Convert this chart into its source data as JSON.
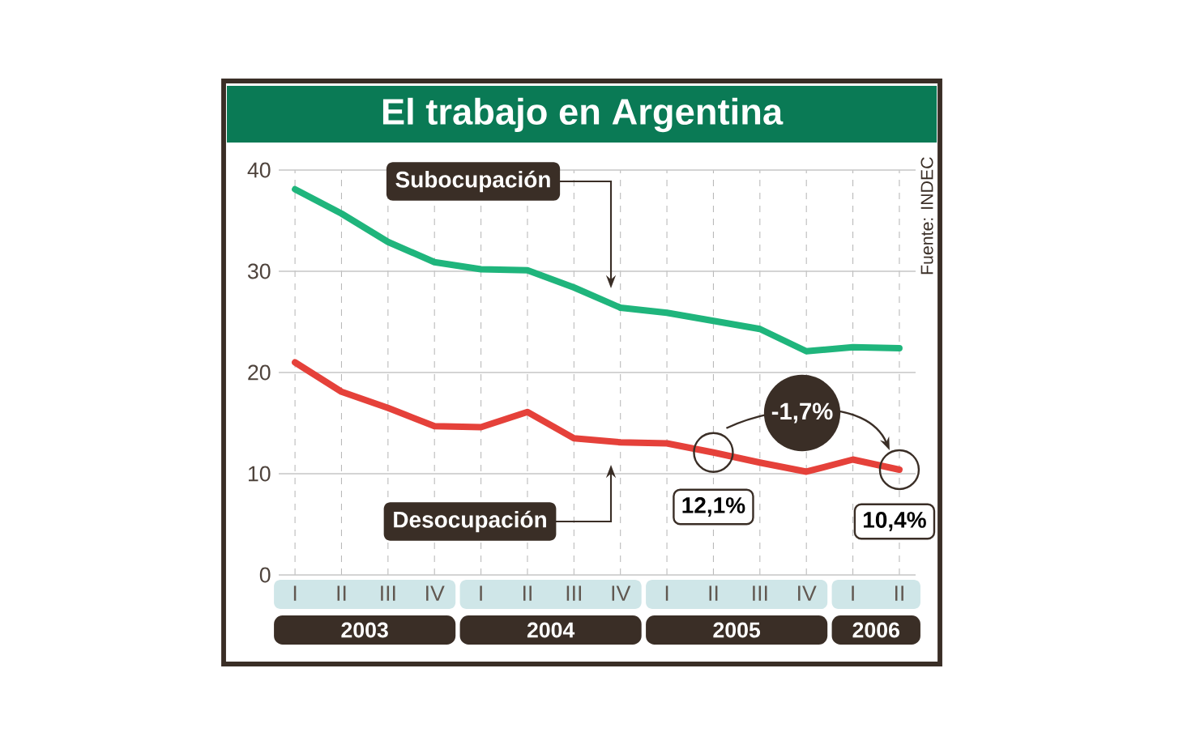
{
  "chart_data": {
    "type": "line",
    "title": "El trabajo en Argentina",
    "categories": [
      "I",
      "II",
      "III",
      "IV",
      "I",
      "II",
      "III",
      "IV",
      "I",
      "II",
      "III",
      "IV",
      "I",
      "II"
    ],
    "series": [
      {
        "name": "Subocupación",
        "color": "#1fb57c",
        "values": [
          38.1,
          35.7,
          32.9,
          30.9,
          30.2,
          30.1,
          28.4,
          26.4,
          25.9,
          25.1,
          24.3,
          22.1,
          22.5,
          22.4
        ]
      },
      {
        "name": "Desocupación",
        "color": "#e5413a",
        "values": [
          21.0,
          18.1,
          16.5,
          14.7,
          14.6,
          16.1,
          13.5,
          13.1,
          13.0,
          12.1,
          11.1,
          10.2,
          11.4,
          10.4
        ]
      }
    ],
    "ylim": [
      0,
      40
    ],
    "yticks": [
      0,
      10,
      20,
      30,
      40
    ],
    "grid": true,
    "legend": false,
    "marker": "none",
    "line_style": "solid",
    "annotations": [
      "Fuente: INDEC",
      "2003",
      "2004",
      "2005",
      "2006",
      "12,1%",
      "-1,7%",
      "10,4%"
    ]
  }
}
